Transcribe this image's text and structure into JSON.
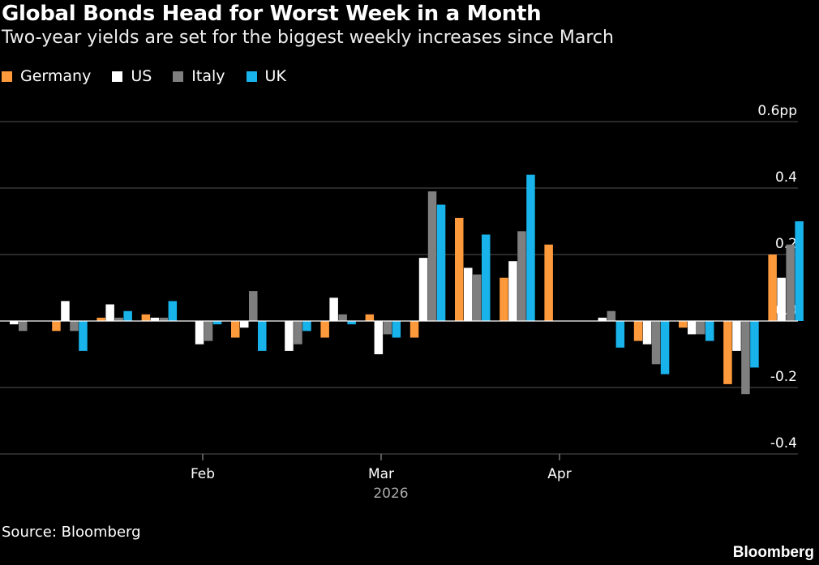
{
  "title": "Global Bonds Head for Worst Week in a Month",
  "subtitle": "Two-year yields are set for the biggest weekly increases since March",
  "source": "Source: Bloomberg",
  "logo": "Bloomberg",
  "colors": {
    "background": "#000000",
    "Germany": "#ff9a3c",
    "US": "#ffffff",
    "Italy": "#7f7f7f",
    "UK": "#19b3ec"
  },
  "chart_data": {
    "type": "bar",
    "grid": true,
    "ylim": [
      -0.4,
      0.6
    ],
    "y_ticks": [
      "0.6pp",
      "0.4",
      "0.2",
      "0.0",
      "-0.2",
      "-0.4"
    ],
    "x_ticks": [
      "Feb",
      "Mar",
      "Apr"
    ],
    "x_year_label": "2026",
    "legend_position": "top-left",
    "series": [
      {
        "name": "Germany",
        "values": [
          0.0,
          -0.03,
          0.01,
          0.02,
          0.0,
          -0.05,
          0.0,
          -0.05,
          0.02,
          -0.05,
          0.31,
          0.13,
          0.23,
          0.0,
          -0.06,
          -0.02,
          -0.19,
          0.2
        ]
      },
      {
        "name": "US",
        "values": [
          -0.01,
          0.06,
          0.05,
          0.01,
          -0.07,
          -0.02,
          -0.09,
          0.07,
          -0.1,
          0.19,
          0.16,
          0.18,
          0.0,
          0.01,
          -0.07,
          -0.04,
          -0.09,
          0.13
        ]
      },
      {
        "name": "Italy",
        "values": [
          -0.03,
          -0.03,
          0.01,
          0.01,
          -0.06,
          0.09,
          -0.07,
          0.02,
          -0.04,
          0.39,
          0.14,
          0.27,
          0.0,
          0.03,
          -0.13,
          -0.04,
          -0.22,
          0.23
        ]
      },
      {
        "name": "UK",
        "values": [
          0.0,
          -0.09,
          0.03,
          0.06,
          -0.01,
          -0.09,
          -0.03,
          -0.01,
          -0.05,
          0.35,
          0.26,
          0.44,
          0.0,
          -0.08,
          -0.16,
          -0.06,
          -0.14,
          0.3
        ]
      }
    ]
  }
}
